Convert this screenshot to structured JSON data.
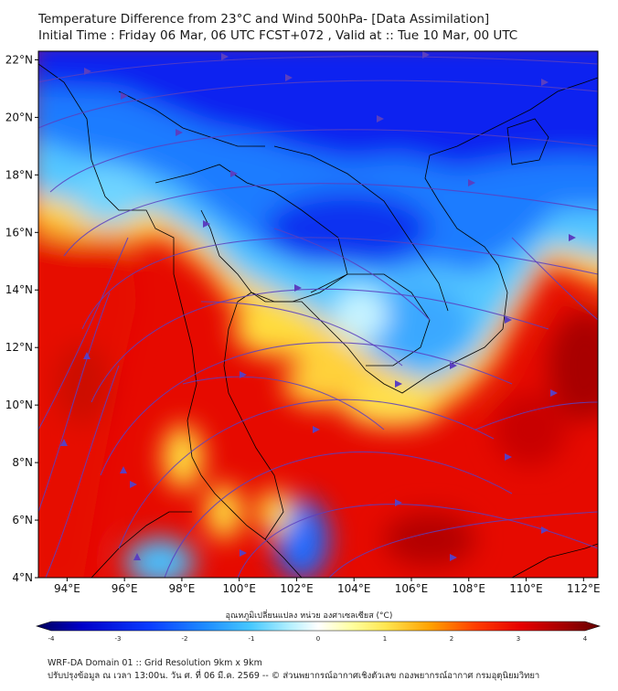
{
  "title": {
    "line1": "Temperature Difference from 23°C and Wind 500hPa- [Data Assimilation]",
    "line2": "Initial Time : Friday 06 Mar, 06 UTC FCST+072 , Valid at ::  Tue 10 Mar, 00 UTC"
  },
  "map": {
    "lat_ticks": [
      "22°N",
      "20°N",
      "18°N",
      "16°N",
      "14°N",
      "12°N",
      "10°N",
      "8°N",
      "6°N",
      "4°N"
    ],
    "lon_ticks": [
      "94°E",
      "96°E",
      "98°E",
      "100°E",
      "102°E",
      "104°E",
      "106°E",
      "108°E",
      "110°E",
      "112°E"
    ],
    "lat_range": [
      4,
      22.3
    ],
    "lon_range": [
      93,
      112.5
    ],
    "streamline_color": "#5a3fc0",
    "coastline_color": "#000000"
  },
  "colorbar": {
    "caption": "อุณหภูมิเปลี่ยนแปลง หน่วย องศาเซลเซียส (°C)",
    "ticks": [
      "-4",
      "-3",
      "-2",
      "-1",
      "0",
      "1",
      "2",
      "3",
      "4"
    ],
    "range": [
      -4,
      4
    ],
    "colors": [
      "#00005a",
      "#0000c8",
      "#0a3cff",
      "#1e8cff",
      "#46c8ff",
      "#b4f0ff",
      "#ffffff",
      "#ffffa0",
      "#ffe650",
      "#ffa000",
      "#ff3c00",
      "#e60000",
      "#a00000",
      "#640000"
    ]
  },
  "footer": {
    "line1": "WRF-DA Domain 01 :: Grid Resolution 9km x 9km",
    "line2": "ปรับปรุงข้อมูล ณ เวลา 13:00น. วัน ศ. ที่ 06 มี.ค. 2569 -- © ส่วนพยากรณ์อากาศเชิงตัวเลข กองพยากรณ์อากาศ กรมอุตุนิยมวิทยา"
  }
}
